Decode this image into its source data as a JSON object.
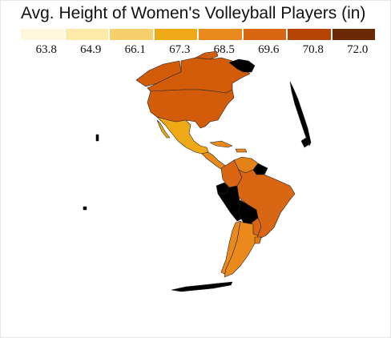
{
  "title": "Avg. Height of Women's Volleyball Players (in)",
  "legend": {
    "ticks": [
      "63.8",
      "64.9",
      "66.1",
      "67.3",
      "68.5",
      "69.6",
      "70.8",
      "72.0"
    ],
    "colors": [
      "#fff8dc",
      "#fdeaa8",
      "#f6cf6b",
      "#f0a916",
      "#ea8a1c",
      "#d96612",
      "#b54404",
      "#6b2a06"
    ]
  },
  "map": {
    "projection": "orthographic globe, western hemisphere",
    "no_data_color": "#000000",
    "regions": {
      "alaska": "#d35c0b",
      "canada": "#d35c0b",
      "united_states": "#d35c0b",
      "greenland": "#000000",
      "mexico": "#f0a916",
      "central_america": "#ea8a1c",
      "caribbean": "#ea8a1c",
      "venezuela": "#e38216",
      "colombia": "#d96612",
      "guianas": "#000000",
      "ecuador": "#000000",
      "peru": "#000000",
      "brazil": "#d96612",
      "bolivia": "#000000",
      "chile": "#ea8a1c",
      "argentina": "#ea8a1c",
      "paraguay": "#d96612",
      "uruguay": "#e07a14",
      "antarctica": "#000000"
    }
  }
}
